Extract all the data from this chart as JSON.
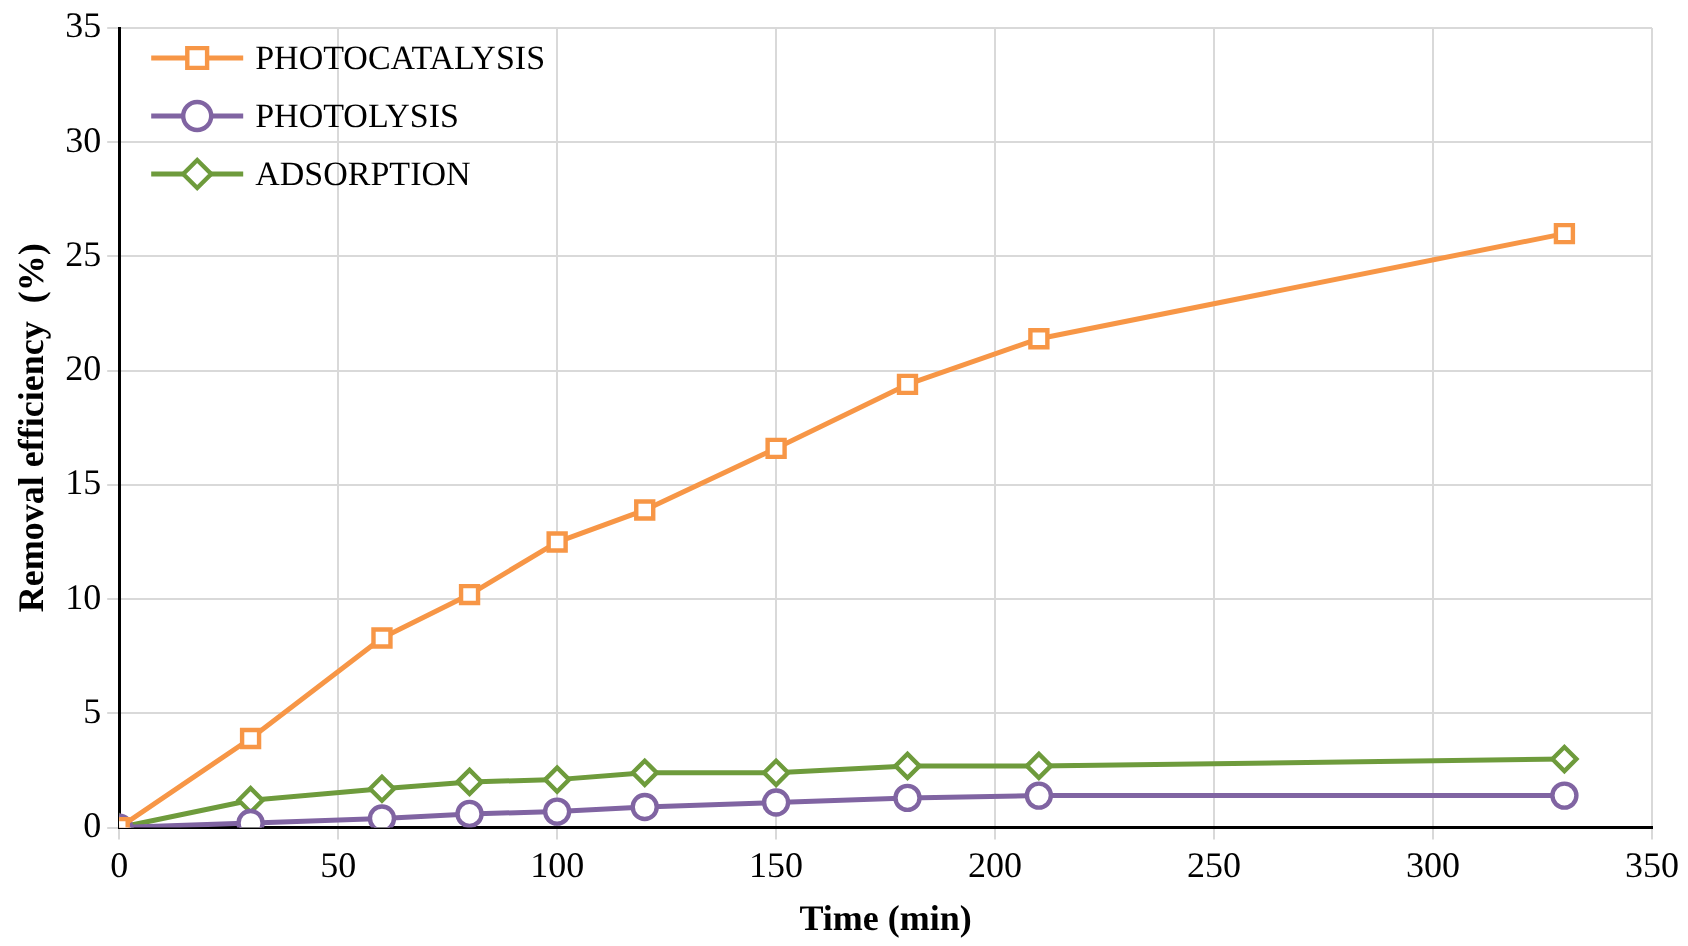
{
  "chart_data": {
    "type": "line",
    "xlabel": "Time (min)",
    "ylabel": "Removal efficiency  (%)",
    "x": [
      0,
      30,
      60,
      80,
      100,
      120,
      150,
      180,
      210,
      330
    ],
    "series": [
      {
        "name": "PHOTOCATALYSIS",
        "color": "#f79646",
        "marker": "square",
        "values": [
          0,
          3.9,
          8.3,
          10.2,
          12.5,
          13.9,
          16.6,
          19.4,
          21.4,
          26.0
        ]
      },
      {
        "name": "PHOTOLYSIS",
        "color": "#8064a2",
        "marker": "circle",
        "values": [
          0,
          0.2,
          0.4,
          0.6,
          0.7,
          0.9,
          1.1,
          1.3,
          1.4,
          1.4
        ]
      },
      {
        "name": "ADSORPTION",
        "color": "#6e9b3c",
        "marker": "diamond",
        "values": [
          0,
          1.2,
          1.7,
          2.0,
          2.1,
          2.4,
          2.4,
          2.7,
          2.7,
          3.0
        ]
      }
    ],
    "xlim": [
      0,
      350
    ],
    "xticks": [
      0,
      50,
      100,
      150,
      200,
      250,
      300,
      350
    ],
    "ylim": [
      0,
      35
    ],
    "yticks": [
      0,
      5,
      10,
      15,
      20,
      25,
      30,
      35
    ],
    "grid": true,
    "legend": "top left",
    "line_style": "solid"
  }
}
